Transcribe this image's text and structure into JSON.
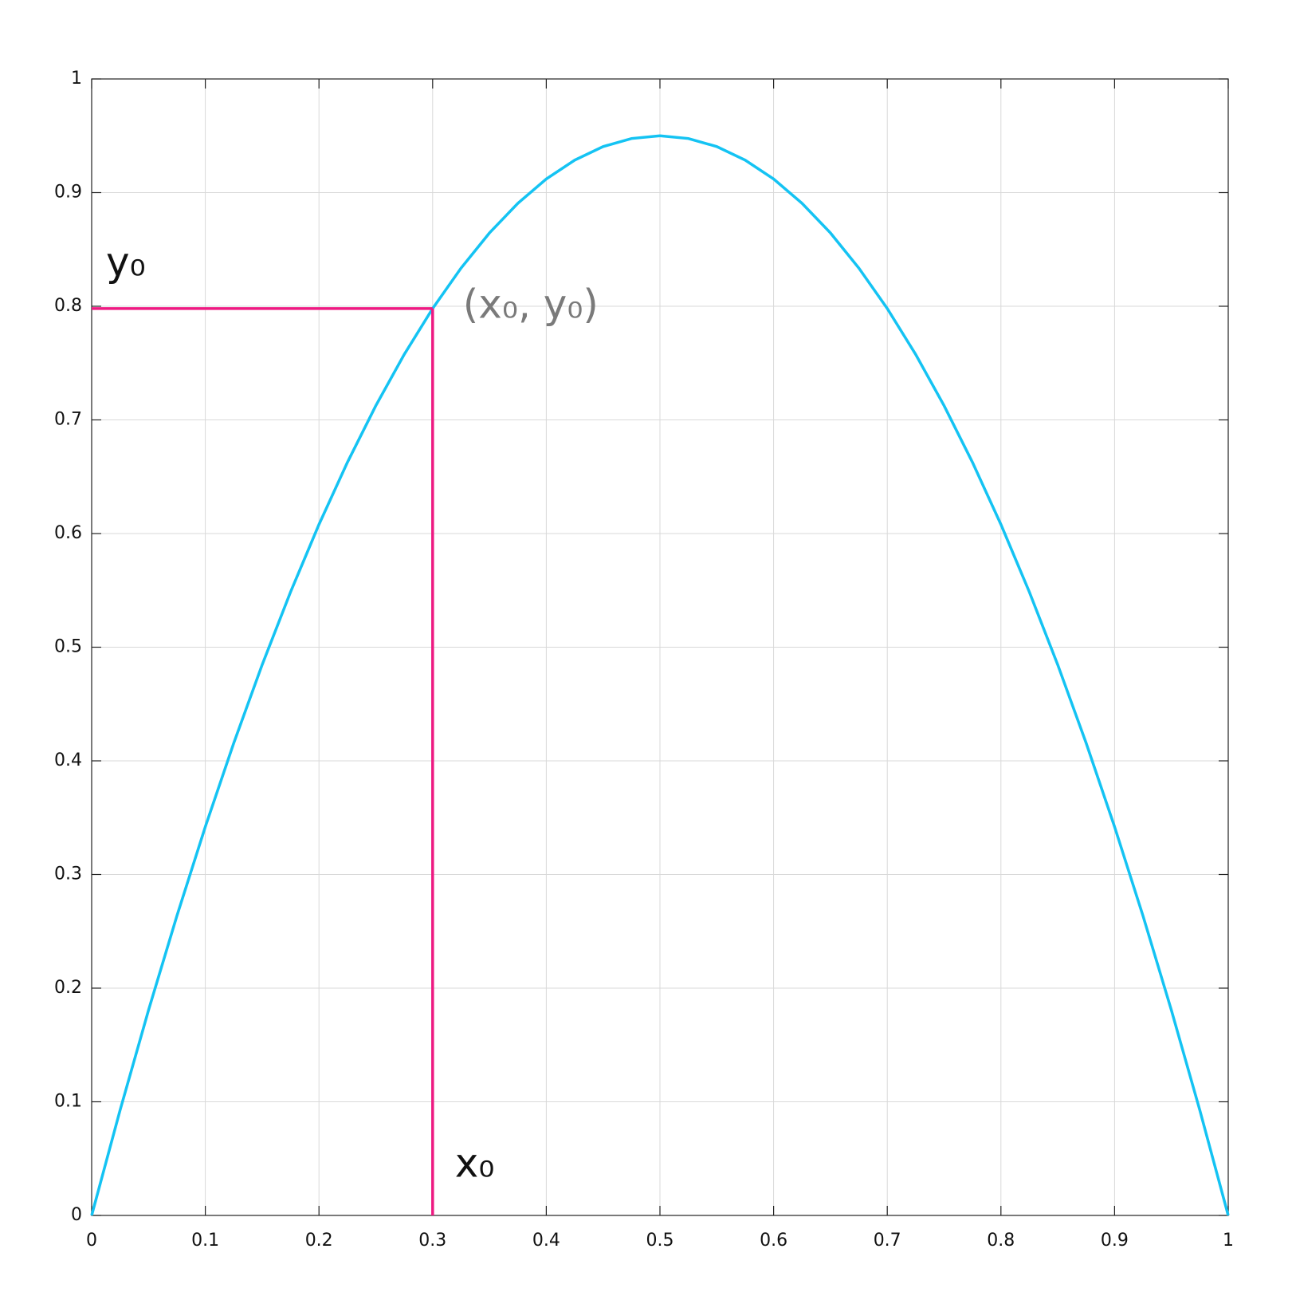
{
  "chart_data": {
    "type": "line",
    "x": [
      0,
      0.025,
      0.05,
      0.075,
      0.1,
      0.125,
      0.15,
      0.175,
      0.2,
      0.225,
      0.25,
      0.275,
      0.3,
      0.325,
      0.35,
      0.375,
      0.4,
      0.425,
      0.45,
      0.475,
      0.5,
      0.525,
      0.55,
      0.575,
      0.6,
      0.625,
      0.65,
      0.675,
      0.7,
      0.725,
      0.75,
      0.775,
      0.8,
      0.825,
      0.85,
      0.875,
      0.9,
      0.925,
      0.95,
      0.975,
      1
    ],
    "series": [
      {
        "color": "#14c3f3",
        "values": [
          0,
          0.0926,
          0.1805,
          0.2636,
          0.342,
          0.4156,
          0.4845,
          0.5486,
          0.608,
          0.6626,
          0.7125,
          0.7576,
          0.798,
          0.8336,
          0.8645,
          0.8906,
          0.912,
          0.9286,
          0.9405,
          0.9476,
          0.95,
          0.9476,
          0.9405,
          0.9286,
          0.912,
          0.8906,
          0.8645,
          0.8336,
          0.798,
          0.7576,
          0.7125,
          0.6626,
          0.608,
          0.5486,
          0.4845,
          0.4156,
          0.342,
          0.2636,
          0.1805,
          0.0926,
          0
        ]
      }
    ],
    "xlim": [
      0,
      1
    ],
    "ylim": [
      0,
      1
    ],
    "xticks": [
      0,
      0.1,
      0.2,
      0.3,
      0.4,
      0.5,
      0.6,
      0.7,
      0.8,
      0.9,
      1
    ],
    "yticks": [
      0,
      0.1,
      0.2,
      0.3,
      0.4,
      0.5,
      0.6,
      0.7,
      0.8,
      0.9,
      1
    ],
    "grid": true,
    "guide": {
      "x": 0.3,
      "y": 0.798,
      "color": "#ee1a82"
    },
    "annotations": [
      {
        "text": "y₀",
        "color": "#111111"
      },
      {
        "text": "x₀",
        "color": "#111111"
      },
      {
        "text": "(x₀, y₀)",
        "color": "#7a7a7a"
      }
    ]
  }
}
